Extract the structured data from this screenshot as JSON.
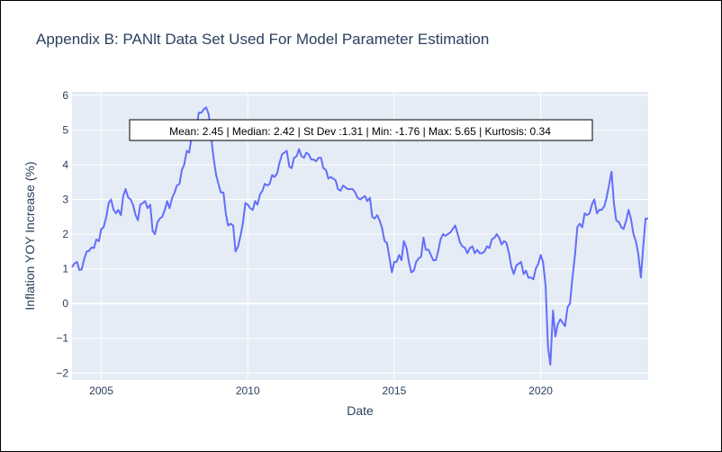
{
  "chart_data": {
    "type": "line",
    "title": "Appendix B: PANlt Data Set Used For Model Parameter Estimation",
    "xlabel": "Date",
    "ylabel": "Inflation YOY Increase (%)",
    "xlim": [
      2004.0,
      2023.67
    ],
    "ylim": [
      -2.2,
      6.1
    ],
    "x_ticks": [
      2005,
      2010,
      2015,
      2020
    ],
    "y_ticks": [
      -2,
      -1,
      0,
      1,
      2,
      3,
      4,
      5,
      6
    ],
    "grid": true,
    "legend": "none",
    "line_color": "#636efa",
    "plot_bg": "#e5ecf6",
    "annotation": "Mean: 2.45 | Median: 2.42 | St Dev :1.31 | Min: -1.76 | Max: 5.65 | Kurtosis: 0.34",
    "series": [
      {
        "x": [
          2004.0,
          2004.08,
          2004.17,
          2004.25,
          2004.33,
          2004.42,
          2004.5,
          2004.58,
          2004.67,
          2004.75,
          2004.83,
          2004.92,
          2005.0,
          2005.08,
          2005.17,
          2005.25,
          2005.33,
          2005.42,
          2005.5,
          2005.58,
          2005.67,
          2005.75,
          2005.83,
          2005.92,
          2006.0,
          2006.08,
          2006.17,
          2006.25,
          2006.33,
          2006.42,
          2006.5,
          2006.58,
          2006.67,
          2006.75,
          2006.83,
          2006.92,
          2007.0,
          2007.08,
          2007.17,
          2007.25,
          2007.33,
          2007.42,
          2007.5,
          2007.58,
          2007.67,
          2007.75,
          2007.83,
          2007.92,
          2008.0,
          2008.08,
          2008.17,
          2008.25,
          2008.33,
          2008.42,
          2008.5,
          2008.58,
          2008.67,
          2008.75,
          2008.83,
          2008.92,
          2009.0,
          2009.08,
          2009.17,
          2009.25,
          2009.33,
          2009.42,
          2009.5,
          2009.58,
          2009.67,
          2009.75,
          2009.83,
          2009.92,
          2010.0,
          2010.08,
          2010.17,
          2010.25,
          2010.33,
          2010.42,
          2010.5,
          2010.58,
          2010.67,
          2010.75,
          2010.83,
          2010.92,
          2011.0,
          2011.08,
          2011.17,
          2011.25,
          2011.33,
          2011.42,
          2011.5,
          2011.58,
          2011.67,
          2011.75,
          2011.83,
          2011.92,
          2012.0,
          2012.08,
          2012.17,
          2012.25,
          2012.33,
          2012.42,
          2012.5,
          2012.58,
          2012.67,
          2012.75,
          2012.83,
          2012.92,
          2013.0,
          2013.08,
          2013.17,
          2013.25,
          2013.33,
          2013.42,
          2013.5,
          2013.58,
          2013.67,
          2013.75,
          2013.83,
          2013.92,
          2014.0,
          2014.08,
          2014.17,
          2014.25,
          2014.33,
          2014.42,
          2014.5,
          2014.58,
          2014.67,
          2014.75,
          2014.83,
          2014.92,
          2015.0,
          2015.08,
          2015.17,
          2015.25,
          2015.33,
          2015.42,
          2015.5,
          2015.58,
          2015.67,
          2015.75,
          2015.83,
          2015.92,
          2016.0,
          2016.08,
          2016.17,
          2016.25,
          2016.33,
          2016.42,
          2016.5,
          2016.58,
          2016.67,
          2016.75,
          2016.83,
          2016.92,
          2017.0,
          2017.08,
          2017.17,
          2017.25,
          2017.33,
          2017.42,
          2017.5,
          2017.58,
          2017.67,
          2017.75,
          2017.83,
          2017.92,
          2018.0,
          2018.08,
          2018.17,
          2018.25,
          2018.33,
          2018.42,
          2018.5,
          2018.58,
          2018.67,
          2018.75,
          2018.83,
          2018.92,
          2019.0,
          2019.08,
          2019.17,
          2019.25,
          2019.33,
          2019.42,
          2019.5,
          2019.58,
          2019.67,
          2019.75,
          2019.83,
          2019.92,
          2020.0,
          2020.08,
          2020.17,
          2020.25,
          2020.33,
          2020.42,
          2020.5,
          2020.58,
          2020.67,
          2020.75,
          2020.83,
          2020.92,
          2021.0,
          2021.08,
          2021.17,
          2021.25,
          2021.33,
          2021.42,
          2021.5,
          2021.58,
          2021.67,
          2021.75,
          2021.83,
          2021.92,
          2022.0,
          2022.08,
          2022.17,
          2022.25,
          2022.33,
          2022.42,
          2022.5,
          2022.58,
          2022.67,
          2022.75,
          2022.83,
          2022.92,
          2023.0,
          2023.08,
          2023.17,
          2023.25,
          2023.33,
          2023.42,
          2023.5,
          2023.58,
          2023.67
        ],
        "y": [
          1.05,
          1.15,
          1.2,
          0.97,
          0.98,
          1.3,
          1.5,
          1.52,
          1.62,
          1.6,
          1.85,
          1.8,
          2.15,
          2.2,
          2.5,
          2.9,
          3.0,
          2.7,
          2.6,
          2.7,
          2.55,
          3.1,
          3.3,
          3.05,
          3.0,
          2.85,
          2.55,
          2.4,
          2.85,
          2.9,
          2.95,
          2.75,
          2.85,
          2.1,
          2.0,
          2.35,
          2.45,
          2.5,
          2.7,
          2.95,
          2.75,
          3.05,
          3.2,
          3.4,
          3.45,
          3.85,
          4.0,
          4.4,
          4.35,
          4.8,
          5.05,
          5.1,
          5.5,
          5.5,
          5.6,
          5.65,
          5.45,
          4.8,
          4.2,
          3.7,
          3.45,
          3.2,
          3.2,
          2.6,
          2.25,
          2.3,
          2.25,
          1.5,
          1.65,
          1.95,
          2.3,
          2.9,
          2.85,
          2.75,
          2.7,
          2.95,
          2.85,
          3.15,
          3.25,
          3.45,
          3.4,
          3.45,
          3.7,
          3.65,
          3.75,
          4.05,
          4.3,
          4.35,
          4.4,
          3.95,
          3.9,
          4.2,
          4.25,
          4.45,
          4.25,
          4.2,
          4.35,
          4.3,
          4.15,
          4.15,
          4.1,
          4.2,
          4.2,
          3.9,
          3.85,
          3.6,
          3.65,
          3.6,
          3.55,
          3.3,
          3.25,
          3.4,
          3.35,
          3.3,
          3.3,
          3.3,
          3.2,
          3.05,
          3.0,
          3.05,
          3.1,
          2.95,
          3.05,
          2.5,
          2.45,
          2.55,
          2.4,
          2.2,
          1.8,
          1.75,
          1.35,
          0.9,
          1.2,
          1.2,
          1.4,
          1.25,
          1.8,
          1.6,
          1.2,
          0.9,
          0.95,
          1.2,
          1.3,
          1.35,
          1.9,
          1.55,
          1.55,
          1.4,
          1.25,
          1.25,
          1.5,
          1.85,
          2.0,
          1.95,
          2.0,
          2.05,
          2.15,
          2.25,
          2.0,
          1.75,
          1.65,
          1.6,
          1.45,
          1.6,
          1.65,
          1.45,
          1.55,
          1.45,
          1.45,
          1.5,
          1.65,
          1.6,
          1.85,
          1.9,
          2.0,
          1.9,
          1.7,
          1.8,
          1.75,
          1.45,
          1.05,
          0.85,
          1.1,
          1.15,
          1.2,
          0.85,
          0.95,
          0.75,
          0.75,
          0.7,
          1.0,
          1.15,
          1.4,
          1.2,
          0.5,
          -1.25,
          -1.76,
          -0.2,
          -0.95,
          -0.6,
          -0.45,
          -0.55,
          -0.65,
          -0.1,
          0.0,
          0.7,
          1.4,
          2.2,
          2.3,
          2.2,
          2.6,
          2.55,
          2.6,
          2.85,
          3.0,
          2.6,
          2.7,
          2.7,
          2.8,
          3.05,
          3.4,
          3.8,
          2.9,
          2.4,
          2.35,
          2.2,
          2.15,
          2.4,
          2.7,
          2.45,
          2.0,
          1.8,
          1.45,
          0.75,
          1.65,
          2.45,
          2.45
        ]
      }
    ]
  }
}
